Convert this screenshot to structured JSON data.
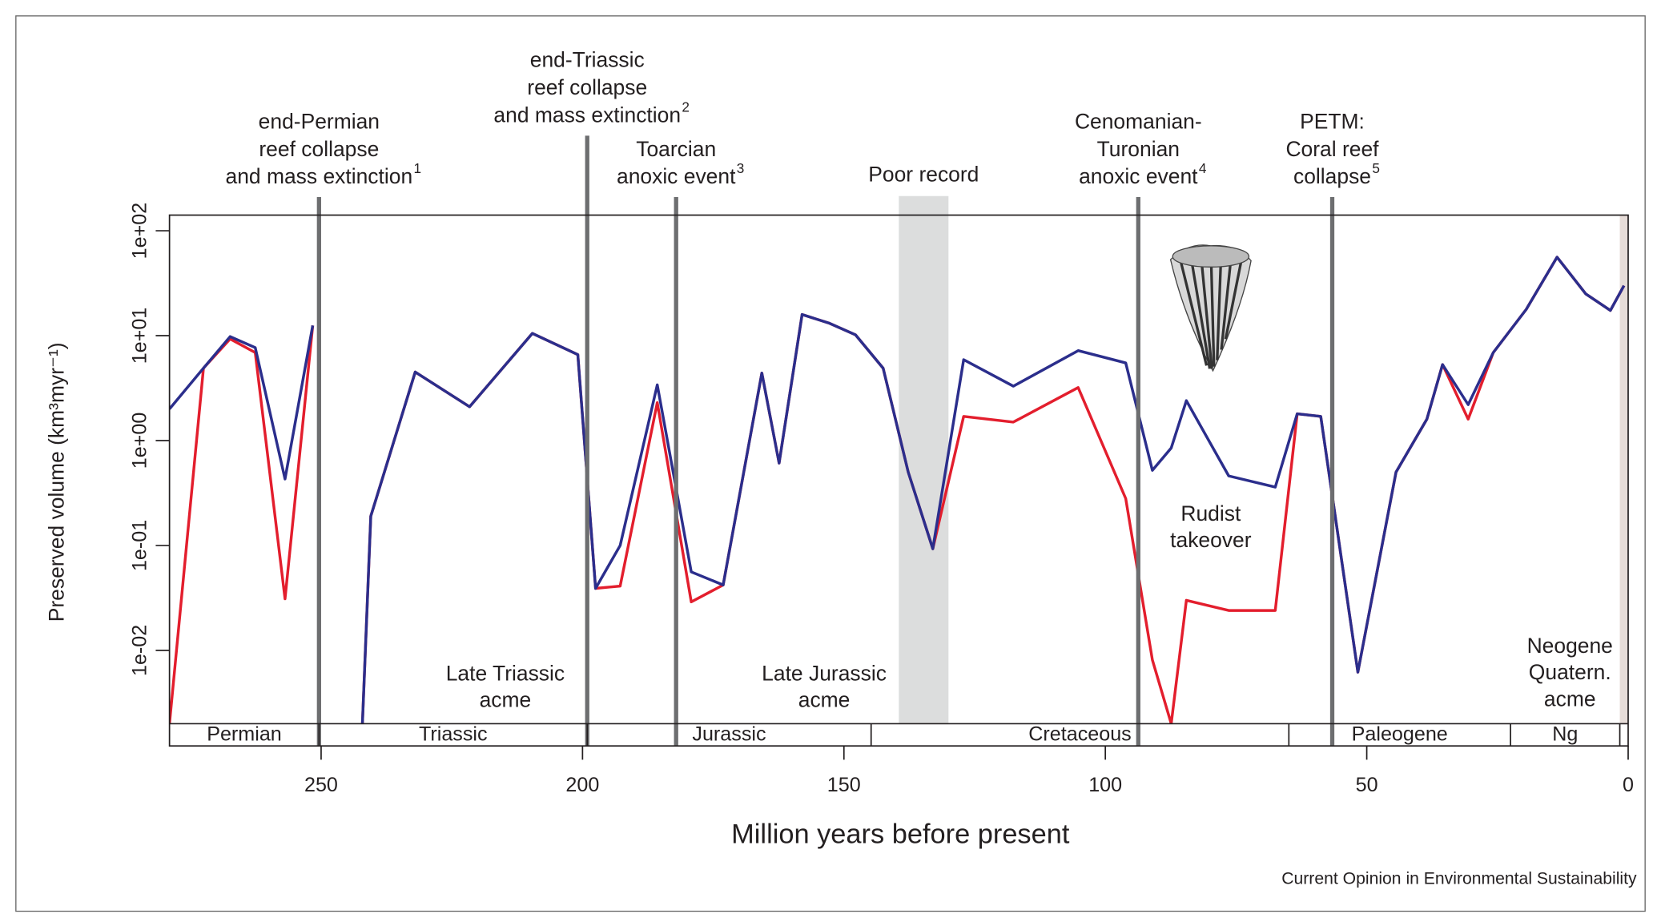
{
  "chart_data": {
    "type": "line",
    "y_log": true,
    "xlabel": "Million years before present",
    "ylabel": "Preserved volume (km³myr⁻¹)",
    "source": "Current Opinion in Environmental Sustainability",
    "xlim": [
      279,
      0
    ],
    "xticks": [
      250,
      200,
      150,
      100,
      50,
      0
    ],
    "ylim": [
      0.002,
      141
    ],
    "yticks": [
      {
        "value": 100,
        "label": "1e+02"
      },
      {
        "value": 10,
        "label": "1e+01"
      },
      {
        "value": 1,
        "label": "1e+00"
      },
      {
        "value": 0.1,
        "label": "1e-01"
      },
      {
        "value": 0.01,
        "label": "1e-02"
      }
    ],
    "x": [
      279,
      272.5,
      267.4,
      262.6,
      256.9,
      251.6,
      247,
      242.1,
      240.5,
      232.0,
      221.6,
      209.6,
      200.9,
      197.5,
      192.8,
      185.7,
      179.2,
      173.1,
      165.7,
      162.4,
      158.0,
      152.9,
      147.8,
      142.5,
      137.7,
      133.0,
      127.1,
      117.6,
      105.2,
      96.1,
      91.0,
      87.4,
      84.5,
      76.4,
      67.5,
      63.3,
      58.8,
      51.7,
      44.4,
      38.5,
      35.5,
      30.6,
      25.8,
      19.5,
      13.6,
      8.1,
      3.4,
      0.8
    ],
    "series": [
      {
        "color": "#e31e2d",
        "values": [
          0.002,
          4.9,
          9.3,
          6.9,
          0.031,
          12.5,
          null,
          0.002,
          0.19,
          4.5,
          2.1,
          10.5,
          6.6,
          0.039,
          0.041,
          2.3,
          0.029,
          0.042,
          4.4,
          0.61,
          15.9,
          13.2,
          10.2,
          4.9,
          0.5,
          0.093,
          1.7,
          1.5,
          3.2,
          0.28,
          0.0081,
          0.002,
          0.03,
          0.024,
          0.024,
          1.8,
          1.7,
          0.0062,
          0.5,
          1.6,
          5.3,
          1.6,
          6.9,
          17.8,
          56,
          25,
          17.4,
          30
        ]
      },
      {
        "color": "#2b2e8c",
        "values": [
          2.0,
          4.9,
          9.8,
          7.7,
          0.43,
          12.5,
          null,
          0.002,
          0.19,
          4.5,
          2.1,
          10.5,
          6.6,
          0.039,
          0.1,
          3.4,
          0.056,
          0.042,
          4.4,
          0.61,
          15.9,
          13.2,
          10.2,
          4.9,
          0.5,
          0.093,
          5.9,
          3.3,
          7.2,
          5.5,
          0.52,
          0.85,
          2.4,
          0.46,
          0.36,
          1.8,
          1.7,
          0.0062,
          0.5,
          1.6,
          5.3,
          2.2,
          6.9,
          17.8,
          56,
          25,
          17.4,
          30
        ]
      }
    ],
    "events": [
      {
        "age": 250.4,
        "lines": [
          "end-Permian",
          "reef collapse",
          "and mass extinction"
        ],
        "note": "1"
      },
      {
        "age": 199.1,
        "lines": [
          "end-Triassic",
          "reef collapse",
          "and mass extinction"
        ],
        "note": "2"
      },
      {
        "age": 182.1,
        "lines": [
          "Toarcian",
          "anoxic event"
        ],
        "note": "3"
      },
      {
        "age": 93.7,
        "lines": [
          "Cenomanian-",
          "Turonian",
          "anoxic event"
        ],
        "note": "4"
      },
      {
        "age": 56.6,
        "lines": [
          "PETM:",
          "Coral reef",
          "collapse"
        ],
        "note": "5"
      }
    ],
    "poor_record": {
      "label": "Poor record",
      "start": 139.5,
      "end": 130
    },
    "periods": [
      {
        "name": "Permian",
        "start": 279,
        "end": 250.4
      },
      {
        "name": "Triassic",
        "start": 250.4,
        "end": 199.1
      },
      {
        "name": "Jurassic",
        "start": 199.1,
        "end": 144.8
      },
      {
        "name": "Cretaceous",
        "start": 144.8,
        "end": 64.9
      },
      {
        "name": "Paleogene",
        "start": 64.9,
        "end": 22.5
      },
      {
        "name": "Ng",
        "start": 22.5,
        "end": 1.6
      }
    ],
    "annotations": [
      {
        "lines": [
          "Late Triassic",
          "acme"
        ]
      },
      {
        "lines": [
          "Late Jurassic",
          "acme"
        ]
      },
      {
        "lines": [
          "Rudist",
          "takeover"
        ]
      },
      {
        "lines": [
          "Neogene",
          "Quatern.",
          "acme"
        ]
      }
    ]
  }
}
